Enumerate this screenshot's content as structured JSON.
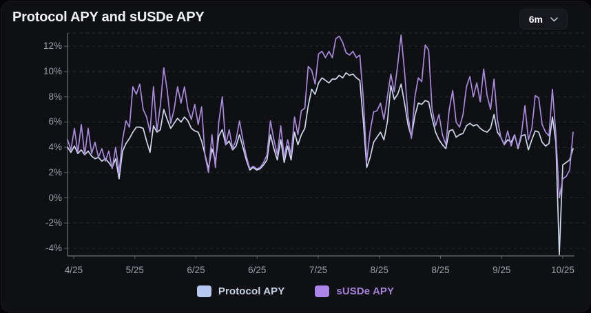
{
  "header": {
    "title": "Protocol APY and sUSDe APY",
    "range_selector": {
      "value": "6m"
    }
  },
  "legend": [
    {
      "label": "Protocol APY",
      "swatch_color": "#b7c9f0",
      "text_color": "#c7d2e4"
    },
    {
      "label": "sUSDe APY",
      "swatch_color": "#ad84e8",
      "text_color": "#a581d8"
    }
  ],
  "chart_data": {
    "type": "line",
    "title": "Protocol APY and sUSDe APY",
    "unit": "%",
    "time_range": "6m",
    "grid": "dashed-horizontal",
    "legend_position": "bottom",
    "ylim": [
      -4.6,
      13.05
    ],
    "y_tick_values": [
      12,
      10,
      8,
      6,
      4,
      2,
      0,
      -2,
      -4
    ],
    "y_tick_labels": [
      "12%",
      "10%",
      "8%",
      "6%",
      "4%",
      "2%",
      "0%",
      "-2%",
      "-4%"
    ],
    "x_tick_labels": [
      "4/25",
      "5/25",
      "6/25",
      "6/25",
      "7/25",
      "8/25",
      "8/25",
      "9/25",
      "10/25"
    ],
    "series": [
      {
        "name": "Protocol APY",
        "color": "#cdd9ec",
        "values": [
          4.0,
          3.6,
          4.1,
          3.5,
          3.8,
          3.4,
          3.7,
          3.3,
          3.1,
          3.2,
          2.9,
          3.1,
          2.8,
          2.4,
          3.1,
          1.5,
          3.7,
          4.3,
          4.7,
          5.2,
          5.6,
          5.6,
          5.5,
          4.5,
          3.6,
          5.7,
          5.2,
          5.4,
          7.0,
          6.2,
          5.5,
          5.9,
          6.3,
          6.0,
          6.4,
          6.1,
          5.5,
          5.3,
          5.2,
          4.5,
          3.4,
          2.3,
          3.9,
          2.9,
          4.9,
          5.4,
          4.2,
          4.5,
          3.8,
          4.1,
          5.0,
          4.0,
          3.0,
          2.2,
          2.4,
          2.2,
          2.3,
          2.6,
          3.0,
          5.0,
          3.9,
          3.0,
          4.6,
          2.8,
          4.1,
          3.0,
          5.2,
          4.2,
          5.0,
          5.5,
          7.3,
          8.6,
          8.2,
          9.1,
          9.5,
          9.3,
          9.1,
          9.4,
          9.4,
          9.7,
          9.5,
          9.9,
          9.7,
          9.8,
          9.5,
          9.3,
          6.1,
          2.4,
          3.2,
          4.4,
          4.8,
          5.2,
          4.6,
          6.0,
          8.9,
          7.8,
          8.2,
          9.0,
          7.5,
          5.8,
          4.8,
          6.5,
          7.5,
          7.4,
          7.7,
          7.6,
          6.3,
          5.2,
          4.6,
          4.2,
          3.9,
          5.3,
          5.4,
          4.8,
          5.0,
          5.1,
          5.7,
          5.9,
          5.7,
          5.8,
          5.5,
          5.3,
          5.2,
          5.5,
          6.6,
          5.2,
          4.8,
          4.2,
          4.6,
          4.4,
          5.0,
          3.9,
          4.9,
          5.0,
          3.8,
          4.6,
          5.3,
          5.2,
          4.4,
          4.1,
          4.3,
          6.4,
          4.4,
          -4.5,
          2.6,
          2.8,
          3.0,
          3.9
        ]
      },
      {
        "name": "sUSDe APY",
        "color": "#a98add",
        "values": [
          4.6,
          3.8,
          5.5,
          3.6,
          5.8,
          3.4,
          5.5,
          3.5,
          4.4,
          3.2,
          3.9,
          2.9,
          3.7,
          2.3,
          4.0,
          2.0,
          4.6,
          6.1,
          5.6,
          8.8,
          8.2,
          9.0,
          7.0,
          6.4,
          5.2,
          8.8,
          5.3,
          7.3,
          10.3,
          8.5,
          5.9,
          7.0,
          8.8,
          7.5,
          8.8,
          7.0,
          6.2,
          7.4,
          5.8,
          7.2,
          3.3,
          2.0,
          5.0,
          2.4,
          6.0,
          8.0,
          4.2,
          5.4,
          3.9,
          4.6,
          6.1,
          4.6,
          3.3,
          2.3,
          2.5,
          2.3,
          2.4,
          2.8,
          3.4,
          6.1,
          4.6,
          3.4,
          5.7,
          3.2,
          4.6,
          3.4,
          6.4,
          5.0,
          6.9,
          7.1,
          10.4,
          10.1,
          9.0,
          11.4,
          11.6,
          11.1,
          11.6,
          11.1,
          12.6,
          12.8,
          12.3,
          11.5,
          11.3,
          11.6,
          11.1,
          11.3,
          7.9,
          2.9,
          5.3,
          6.8,
          6.9,
          7.5,
          6.2,
          8.0,
          9.8,
          8.4,
          10.5,
          12.9,
          10.0,
          6.5,
          4.7,
          8.0,
          9.5,
          9.2,
          12.1,
          11.7,
          7.0,
          5.7,
          6.6,
          5.0,
          4.2,
          7.0,
          8.5,
          6.0,
          5.6,
          6.6,
          8.8,
          9.6,
          8.0,
          9.1,
          7.6,
          10.2,
          8.1,
          7.0,
          9.4,
          6.2,
          4.8,
          4.2,
          5.3,
          4.1,
          5.0,
          4.0,
          5.1,
          7.3,
          4.6,
          5.5,
          8.1,
          7.9,
          5.8,
          5.2,
          4.9,
          8.6,
          5.0,
          0.0,
          1.5,
          1.7,
          2.2,
          5.2
        ]
      }
    ]
  }
}
